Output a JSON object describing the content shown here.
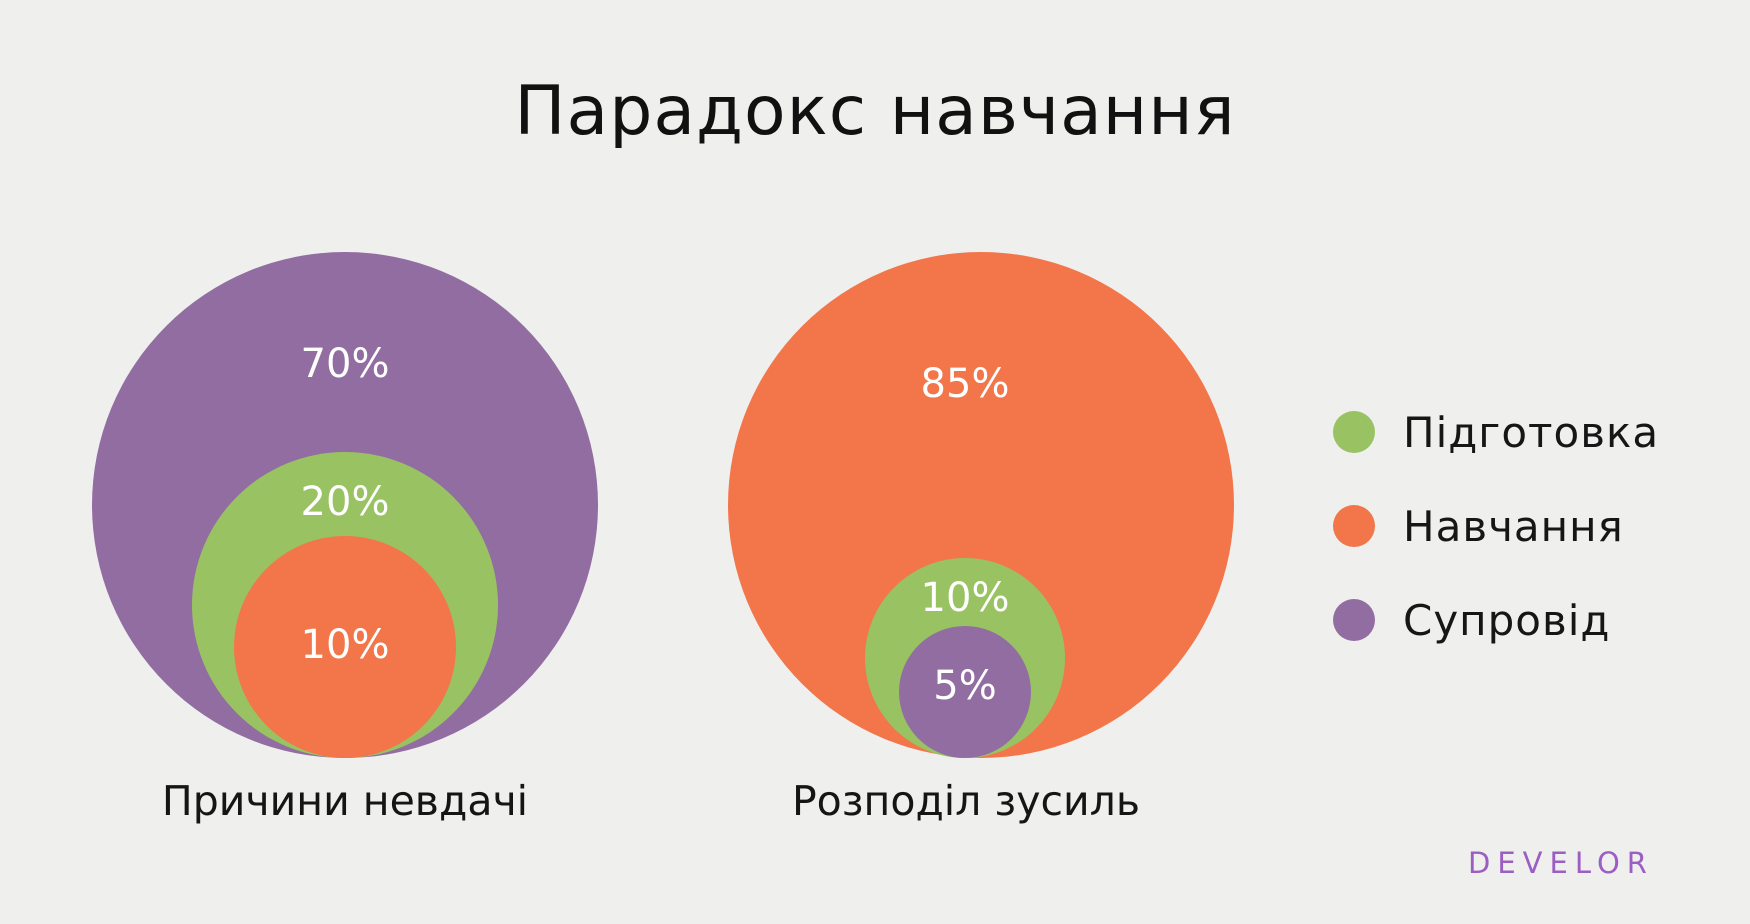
{
  "title": "Парадокс навчання",
  "colors": {
    "Підготовка": "#99c262",
    "Навчання": "#f2764a",
    "Супровід": "#926da2",
    "label_text": "#ffffff",
    "logo": "#9b5fc4"
  },
  "legend": [
    {
      "label": "Підготовка",
      "color": "#99c262"
    },
    {
      "label": "Навчання",
      "color": "#f2764a"
    },
    {
      "label": "Супровід",
      "color": "#926da2"
    }
  ],
  "chart_data": [
    {
      "type": "nested-circles",
      "title": "Причини невдачі",
      "series": [
        {
          "name": "Супровід",
          "value": 70,
          "label": "70%"
        },
        {
          "name": "Підготовка",
          "value": 20,
          "label": "20%"
        },
        {
          "name": "Навчання",
          "value": 10,
          "label": "10%"
        }
      ]
    },
    {
      "type": "nested-circles",
      "title": "Розподіл зусиль",
      "series": [
        {
          "name": "Навчання",
          "value": 85,
          "label": "85%"
        },
        {
          "name": "Підготовка",
          "value": 10,
          "label": "10%"
        },
        {
          "name": "Супровід",
          "value": 5,
          "label": "5%"
        }
      ]
    }
  ],
  "brand": "DEVELOR"
}
